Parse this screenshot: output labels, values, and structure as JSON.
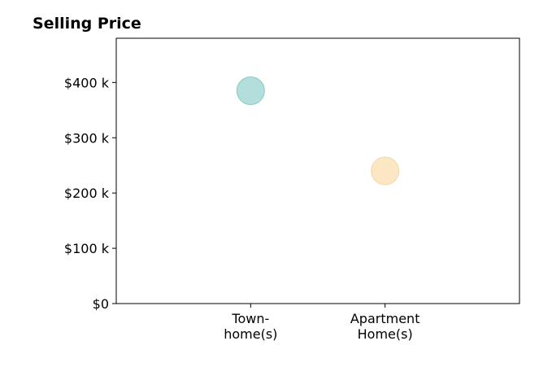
{
  "chart_data": {
    "type": "scatter",
    "title": "Selling Price",
    "xlabel": "",
    "ylabel": "",
    "categories": [
      [
        "Town-",
        "home(s)"
      ],
      [
        "Apartment",
        "Home(s)"
      ]
    ],
    "xlim": [
      -1,
      2
    ],
    "ylim": [
      0,
      480000
    ],
    "yticks": [
      {
        "value": 0,
        "label": "$0"
      },
      {
        "value": 100000,
        "label": "$100 k"
      },
      {
        "value": 200000,
        "label": "$200 k"
      },
      {
        "value": 300000,
        "label": "$300 k"
      },
      {
        "value": 400000,
        "label": "$400 k"
      }
    ],
    "points": [
      {
        "category_index": 0,
        "value": 385000,
        "color": "#b2dfdb",
        "edge_color": "#8ccac4"
      },
      {
        "category_index": 1,
        "value": 240000,
        "color": "#fbe7c4",
        "edge_color": "#f3d7a8"
      }
    ],
    "grid": false,
    "legend": "none"
  }
}
